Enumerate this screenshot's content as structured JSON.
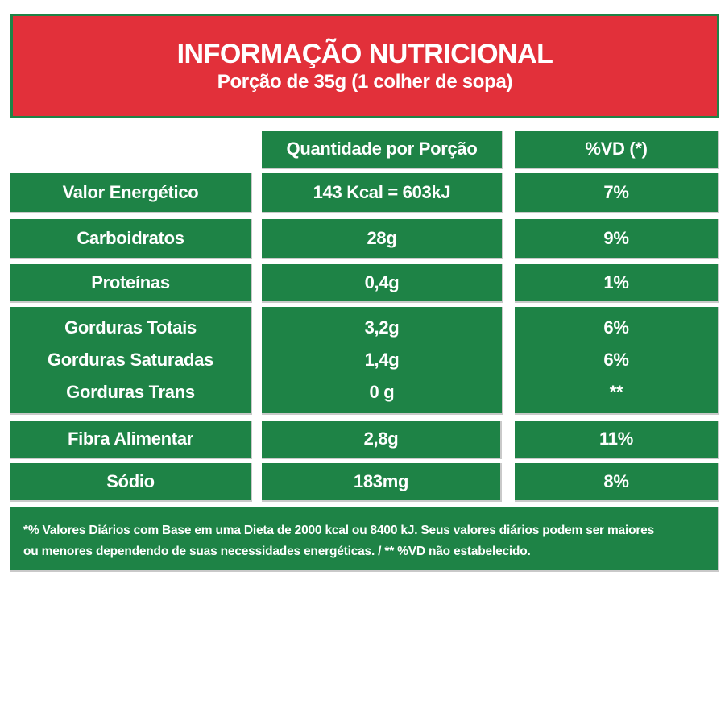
{
  "header": {
    "title": "INFORMAÇÃO NUTRICIONAL",
    "subtitle": "Porção de 35g (1 colher de sopa)"
  },
  "columns": {
    "quantity": "Quantidade por Porção",
    "dv": "%VD (*)"
  },
  "rows": [
    {
      "label": "Valor Energético",
      "quantity": "143 Kcal = 603kJ",
      "dv": "7%"
    },
    {
      "label": "Carboidratos",
      "quantity": "28g",
      "dv": "9%"
    },
    {
      "label": "Proteínas",
      "quantity": "0,4g",
      "dv": "1%"
    }
  ],
  "fats": [
    {
      "label": "Gorduras Totais",
      "quantity": "3,2g",
      "dv": "6%"
    },
    {
      "label": "Gorduras Saturadas",
      "quantity": "1,4g",
      "dv": "6%"
    },
    {
      "label": "Gorduras Trans",
      "quantity": "0 g",
      "dv": "**"
    }
  ],
  "rows2": [
    {
      "label": "Fibra Alimentar",
      "quantity": "2,8g",
      "dv": "11%"
    },
    {
      "label": "Sódio",
      "quantity": "183mg",
      "dv": "8%"
    }
  ],
  "footer": {
    "line1": "*% Valores Diários com Base em uma Dieta de 2000 kcal ou 8400 kJ. Seus valores diários podem ser maiores",
    "line2": "ou menores dependendo de suas necessidades energéticas. / ** %VD não estabelecido."
  },
  "colors": {
    "red": "#e2303a",
    "green": "#1e8346"
  }
}
